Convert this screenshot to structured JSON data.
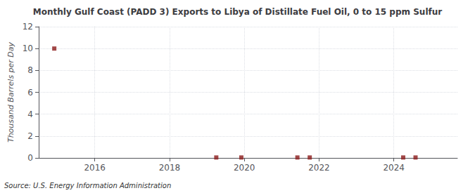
{
  "chart_data": {
    "type": "scatter",
    "title": "Monthly Gulf Coast (PADD 3) Exports to Libya of Distillate Fuel Oil, 0 to 15 ppm Sulfur",
    "ylabel": "Thousand Barrels per Day",
    "source": "Source: U.S. Energy Information Administration",
    "x": [
      2014.917,
      2019.25,
      2019.92,
      2021.42,
      2021.75,
      2024.25,
      2024.58
    ],
    "values": [
      10.0,
      0.04,
      0.04,
      0.04,
      0.04,
      0.04,
      0.04
    ],
    "color": "#8b1a1a",
    "marker": "square",
    "xlim": [
      2014.5,
      2025.7
    ],
    "xticks": [
      2016,
      2018,
      2020,
      2022,
      2024
    ],
    "ylim": [
      0,
      12
    ],
    "yticks": [
      0,
      2,
      4,
      6,
      8,
      10,
      12
    ],
    "grid": true
  }
}
